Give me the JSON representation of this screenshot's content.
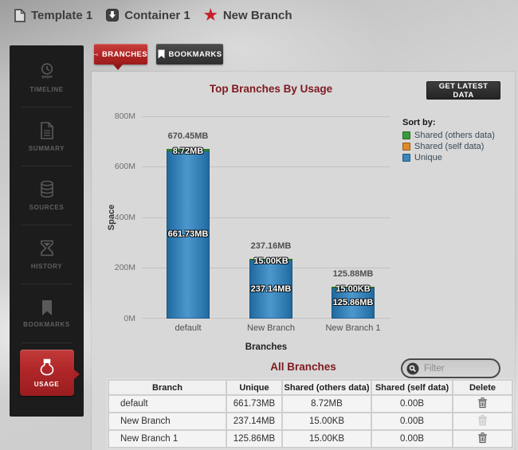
{
  "breadcrumb": {
    "items": [
      {
        "label": "Template 1",
        "icon": "document-icon"
      },
      {
        "label": "Container 1",
        "icon": "container-icon"
      },
      {
        "label": "New Branch",
        "icon": "star-icon"
      }
    ]
  },
  "sidebar": {
    "items": [
      {
        "label": "TIMELINE",
        "icon": "timeline-clock-icon",
        "active": false
      },
      {
        "label": "SUMMARY",
        "icon": "summary-document-icon",
        "active": false
      },
      {
        "label": "SOURCES",
        "icon": "sources-database-icon",
        "active": false
      },
      {
        "label": "HISTORY",
        "icon": "history-hourglass-icon",
        "active": false
      },
      {
        "label": "BOOKMARKS",
        "icon": "bookmark-icon",
        "active": false
      },
      {
        "label": "USAGE",
        "icon": "usage-weight-icon",
        "active": true
      }
    ]
  },
  "tabs": [
    {
      "label": "BRANCHES",
      "icon": "branch-icon",
      "active": true
    },
    {
      "label": "BOOKMARKS",
      "icon": "bookmark-icon",
      "active": false
    }
  ],
  "toolbar": {
    "get_latest_data_label": "GET LATEST DATA"
  },
  "chart_data": {
    "type": "bar",
    "stacked": true,
    "title": "Top Branches By Usage",
    "xlabel": "Branches",
    "ylabel": "Space",
    "ylim_mb": [
      0,
      800
    ],
    "ytick_labels": [
      "800M",
      "600M",
      "400M",
      "200M",
      "0M"
    ],
    "grid": "horizontal",
    "legend_title": "Sort by:",
    "legend_position": "right",
    "categories": [
      "default",
      "New Branch",
      "New Branch 1"
    ],
    "series": [
      {
        "name": "Shared (others data)",
        "color": "#3a9b3a",
        "values_mb": [
          8.72,
          0.0146,
          0.0146
        ],
        "labels": [
          "8.72MB",
          "15.00KB",
          "15.00KB"
        ]
      },
      {
        "name": "Shared (self data)",
        "color": "#e2892b",
        "values_mb": [
          0,
          0,
          0
        ],
        "labels": [
          "0.00B",
          "0.00B",
          "0.00B"
        ]
      },
      {
        "name": "Unique",
        "color": "#3886bd",
        "values_mb": [
          661.73,
          237.14,
          125.86
        ],
        "labels": [
          "661.73MB",
          "237.14MB",
          "125.86MB"
        ]
      }
    ],
    "totals": {
      "values_mb": [
        670.45,
        237.16,
        125.88
      ],
      "labels": [
        "670.45MB",
        "237.16MB",
        "125.88MB"
      ]
    }
  },
  "branches_section": {
    "title": "All Branches",
    "filter_placeholder": "Filter"
  },
  "table": {
    "headers": [
      "Branch",
      "Unique",
      "Shared (others data)",
      "Shared (self data)",
      "Delete"
    ],
    "rows": [
      {
        "branch": "default",
        "unique": "661.73MB",
        "shared_others": "8.72MB",
        "shared_self": "0.00B",
        "delete_enabled": true
      },
      {
        "branch": "New Branch",
        "unique": "237.14MB",
        "shared_others": "15.00KB",
        "shared_self": "0.00B",
        "delete_enabled": false
      },
      {
        "branch": "New Branch 1",
        "unique": "125.86MB",
        "shared_others": "15.00KB",
        "shared_self": "0.00B",
        "delete_enabled": true
      }
    ]
  },
  "colors": {
    "accent_red": "#b6252b",
    "heading_maroon": "#7e1a20",
    "bar_blue": "#3886bd",
    "bar_green": "#3a9b3a",
    "legend_orange": "#e2892b",
    "sidebar_bg": "#1c1c1c"
  }
}
